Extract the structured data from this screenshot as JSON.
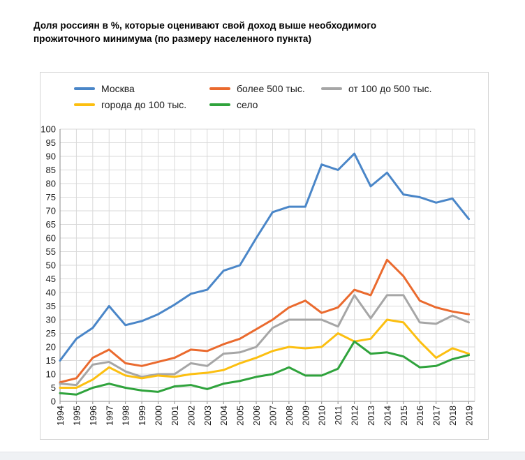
{
  "page": {
    "title_line1": "Доля россиян в %, которые оценивают свой доход выше необходимого",
    "title_line2": "прожиточного минимума (по размеру населенного пункта)"
  },
  "style": {
    "grid_color": "#d9d9d9",
    "axis_color": "#8a8a8a",
    "text_color": "#1a1a1a",
    "box_border_color": "#d4d4d4"
  },
  "chart_data": {
    "type": "line",
    "title": "Доля россиян в %, которые оценивают свой доход выше необходимого прожиточного минимума (по размеру населенного пункта)",
    "x": [
      1994,
      1995,
      1996,
      1997,
      1998,
      1999,
      2000,
      2001,
      2002,
      2003,
      2004,
      2005,
      2006,
      2007,
      2008,
      2009,
      2010,
      2011,
      2012,
      2013,
      2014,
      2015,
      2016,
      2017,
      2018,
      2019
    ],
    "ylim": [
      0,
      100
    ],
    "ytick_step": 5,
    "grid": true,
    "legend_position": "top",
    "series": [
      {
        "name": "Москва",
        "color": "#4a86c8",
        "values": [
          15,
          23,
          27,
          35,
          28,
          29.5,
          32,
          35.5,
          39.5,
          41,
          48,
          50,
          60,
          69.5,
          71.5,
          71.5,
          87,
          85,
          91,
          79,
          84,
          76,
          75,
          73,
          74.5,
          67
        ]
      },
      {
        "name": "более 500 тыс.",
        "color": "#ea6a2e",
        "values": [
          7,
          8.5,
          16,
          19,
          14,
          13,
          14.5,
          16,
          19,
          18.5,
          21,
          23,
          26.5,
          30,
          34.5,
          37,
          32.5,
          34.5,
          41,
          39,
          52,
          46,
          37,
          34.5,
          33,
          32
        ]
      },
      {
        "name": "от 100 до 500 тыс.",
        "color": "#a6a6a6",
        "values": [
          6.5,
          6,
          13.5,
          14.5,
          11,
          9,
          10,
          10,
          14,
          13,
          17.5,
          18,
          20,
          27,
          30,
          30,
          30,
          27.5,
          39,
          30.5,
          39,
          39,
          29,
          28.5,
          31.5,
          29
        ]
      },
      {
        "name": "города до 100 тыс.",
        "color": "#fcbf10",
        "values": [
          5,
          5,
          8,
          12.5,
          9.5,
          8.5,
          9.5,
          9,
          10,
          10.5,
          11.5,
          14,
          16,
          18.5,
          20,
          19.5,
          20,
          25,
          22,
          23,
          30,
          29,
          22,
          16,
          19.5,
          17.5
        ]
      },
      {
        "name": "село",
        "color": "#2fa33c",
        "values": [
          3,
          2.5,
          5,
          6.5,
          5,
          4,
          3.5,
          5.5,
          6,
          4.5,
          6.5,
          7.5,
          9,
          10,
          12.5,
          9.5,
          9.5,
          12,
          22,
          17.5,
          18,
          16.5,
          12.5,
          13,
          15.5,
          17
        ]
      }
    ]
  }
}
